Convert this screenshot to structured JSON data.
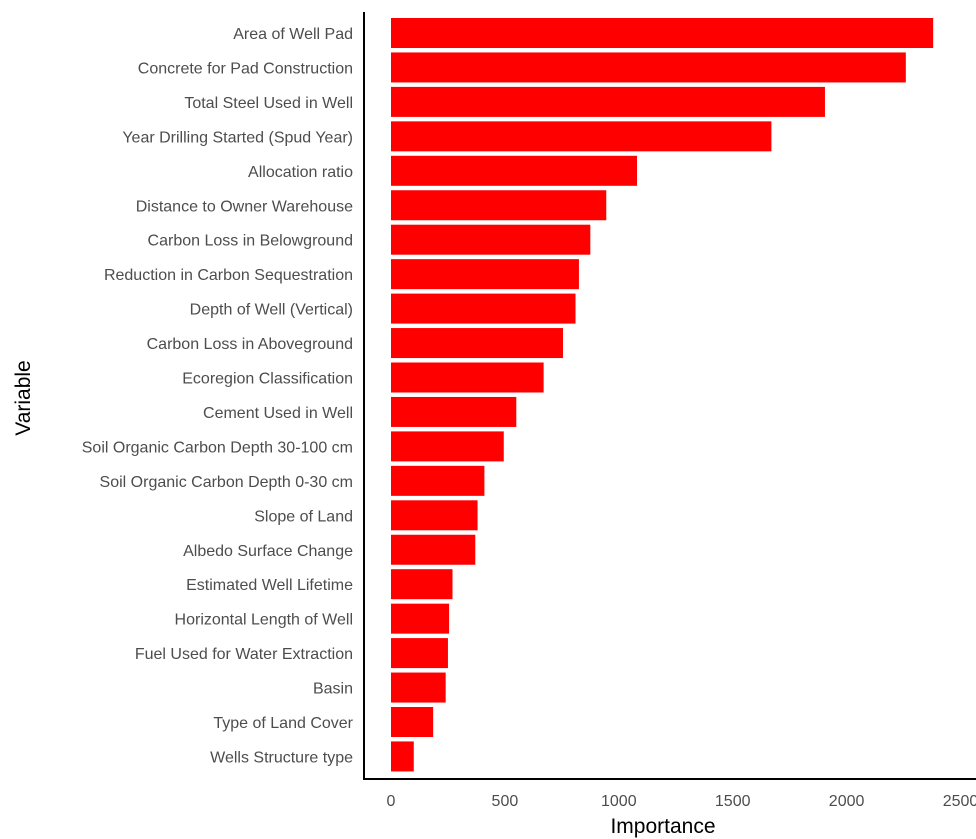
{
  "chart_data": {
    "type": "bar",
    "orientation": "horizontal",
    "xlabel": "Importance",
    "ylabel": "Variable",
    "xlim": [
      0,
      2500
    ],
    "xticks": [
      0,
      500,
      1000,
      1500,
      2000,
      2500
    ],
    "xtick_labels": [
      "0",
      "500",
      "1000",
      "1500",
      "2000",
      "2500"
    ],
    "grid": false,
    "bar_color": "#ff0000",
    "categories": [
      "Area of Well Pad",
      "Concrete for Pad Construction",
      "Total Steel Used in Well",
      "Year Drilling Started (Spud Year)",
      "Allocation ratio",
      "Distance to Owner Warehouse",
      "Carbon Loss in Belowground",
      "Reduction in Carbon Sequestration",
      "Depth of Well (Vertical)",
      "Carbon Loss in Aboveground",
      "Ecoregion Classification",
      "Cement Used in Well",
      "Soil Organic Carbon Depth 30-100 cm",
      "Soil Organic Carbon Depth 0-30 cm",
      "Slope of Land",
      "Albedo Surface Change",
      "Estimated Well Lifetime",
      "Horizontal Length of Well",
      "Fuel Used for Water Extraction",
      "Basin",
      "Type of Land Cover",
      "Wells Structure type"
    ],
    "values": [
      2380,
      2260,
      1905,
      1670,
      1080,
      945,
      875,
      825,
      810,
      755,
      670,
      550,
      495,
      410,
      380,
      370,
      270,
      255,
      250,
      240,
      185,
      100
    ]
  }
}
